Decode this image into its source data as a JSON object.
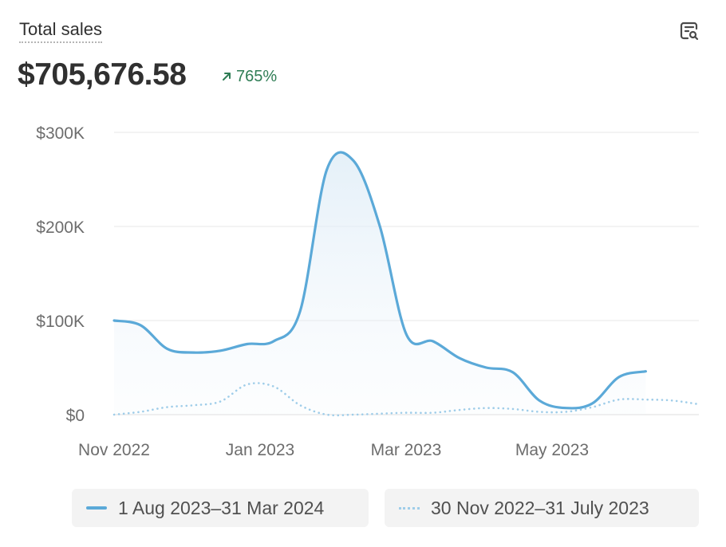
{
  "header": {
    "title": "Total sales",
    "total_value": "$705,676.58",
    "change_pct": "765%",
    "change_color": "#2f7d55"
  },
  "legend": [
    {
      "label": "1 Aug 2023–31 Mar 2024",
      "style": "solid",
      "color": "#5ba9d8"
    },
    {
      "label": "30 Nov 2022–31 July 2023",
      "style": "dotted",
      "color": "#9fcde9"
    }
  ],
  "chart_data": {
    "type": "area",
    "ylim": [
      0,
      300000
    ],
    "y_ticks": [
      {
        "value": 0,
        "label": "$0"
      },
      {
        "value": 100000,
        "label": "$100K"
      },
      {
        "value": 200000,
        "label": "$200K"
      },
      {
        "value": 300000,
        "label": "$300K"
      }
    ],
    "x_ticks": [
      "Nov 2022",
      "Jan 2023",
      "Mar 2023",
      "May 2023"
    ],
    "grid": true,
    "series": [
      {
        "name": "1 Aug 2023–31 Mar 2024",
        "style": "solid",
        "color": "#5ba9d8",
        "values": [
          100000,
          95000,
          70000,
          66000,
          68000,
          75000,
          78000,
          110000,
          260000,
          270000,
          200000,
          85000,
          78000,
          60000,
          50000,
          45000,
          15000,
          7000,
          12000,
          40000,
          46000
        ]
      },
      {
        "name": "30 Nov 2022–31 July 2023",
        "style": "dotted",
        "color": "#9fcde9",
        "values": [
          0,
          3000,
          8000,
          10000,
          14000,
          32000,
          30000,
          10000,
          0,
          0,
          1000,
          2000,
          2000,
          5000,
          7000,
          6000,
          3000,
          3000,
          8000,
          16000,
          16000,
          15000,
          11000
        ]
      }
    ]
  }
}
